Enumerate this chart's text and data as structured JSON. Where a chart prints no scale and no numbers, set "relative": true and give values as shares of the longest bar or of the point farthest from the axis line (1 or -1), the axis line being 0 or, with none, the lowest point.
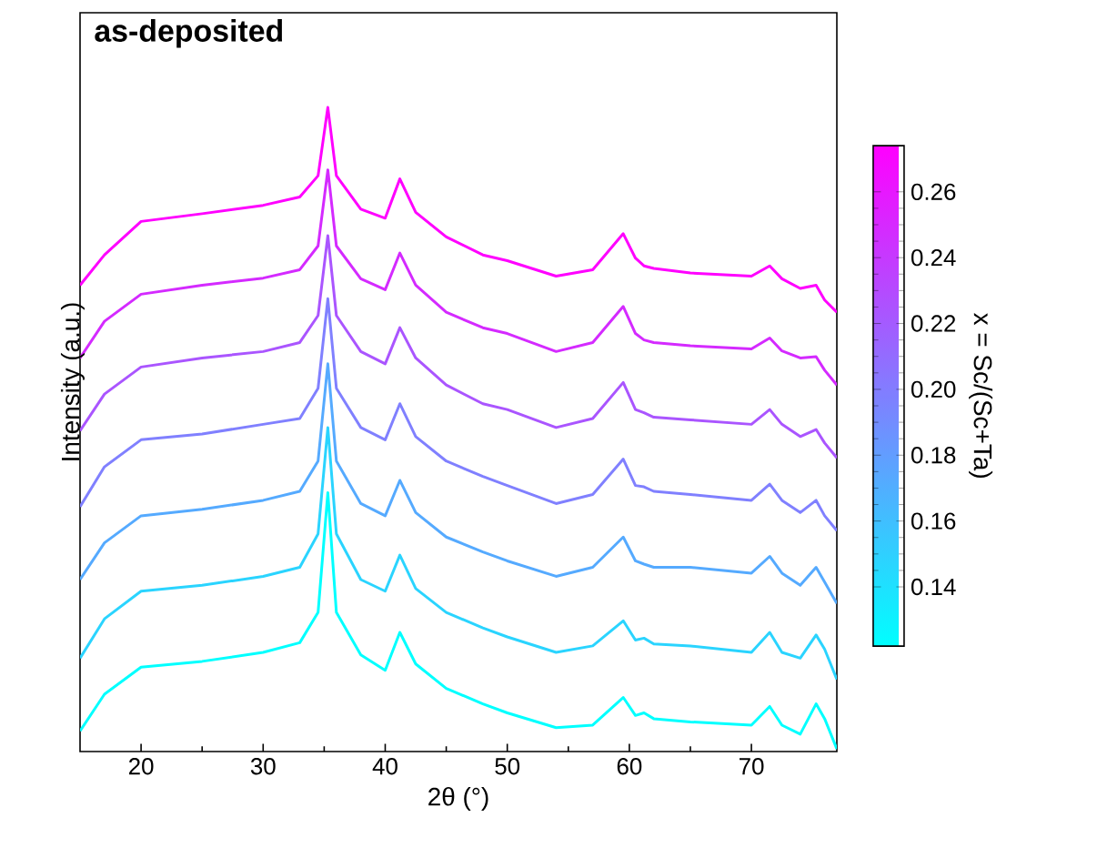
{
  "chart_data": {
    "type": "line",
    "title": "as-deposited",
    "xlabel": "2θ (°)",
    "ylabel": "Intensity (a.u.)",
    "clabel": "x = Sc/(Sc+Ta)",
    "relative": true,
    "tick_labels": "x",
    "xlim": [
      15,
      77
    ],
    "xticks": [
      20,
      30,
      40,
      50,
      60,
      70
    ],
    "clim": [
      0.122,
      0.274
    ],
    "cticks": [
      0.14,
      0.16,
      0.18,
      {
        "value": 0.2,
        "label": "0.20"
      },
      0.22,
      0.24,
      0.26
    ],
    "x": [
      15,
      17,
      20,
      25,
      30,
      33,
      34.5,
      35.3,
      36,
      38,
      40,
      41.2,
      42.5,
      45,
      48,
      50,
      54,
      57,
      59.5,
      60.5,
      61.2,
      62,
      65,
      70,
      71.5,
      72.5,
      74,
      75.3,
      76,
      77
    ],
    "series": [
      {
        "color": "#ff00ff",
        "values": [
          0.724,
          0.771,
          0.823,
          0.835,
          0.848,
          0.861,
          0.894,
          1.0,
          0.894,
          0.842,
          0.828,
          0.889,
          0.837,
          0.799,
          0.771,
          0.762,
          0.738,
          0.748,
          0.804,
          0.766,
          0.754,
          0.75,
          0.743,
          0.738,
          0.754,
          0.734,
          0.719,
          0.724,
          0.701,
          0.682
        ]
      },
      {
        "color": "#d42aff",
        "values": [
          0.611,
          0.668,
          0.71,
          0.724,
          0.735,
          0.748,
          0.785,
          0.903,
          0.785,
          0.734,
          0.717,
          0.774,
          0.724,
          0.682,
          0.658,
          0.649,
          0.621,
          0.635,
          0.691,
          0.649,
          0.639,
          0.635,
          0.63,
          0.625,
          0.642,
          0.622,
          0.611,
          0.613,
          0.592,
          0.569
        ]
      },
      {
        "color": "#aa55ff",
        "values": [
          0.498,
          0.555,
          0.597,
          0.611,
          0.621,
          0.635,
          0.677,
          0.801,
          0.677,
          0.621,
          0.602,
          0.658,
          0.611,
          0.569,
          0.54,
          0.531,
          0.503,
          0.517,
          0.573,
          0.531,
          0.526,
          0.519,
          0.515,
          0.508,
          0.531,
          0.508,
          0.489,
          0.5,
          0.479,
          0.456
        ]
      },
      {
        "color": "#8080ff",
        "values": [
          0.38,
          0.442,
          0.484,
          0.493,
          0.508,
          0.517,
          0.564,
          0.703,
          0.564,
          0.503,
          0.484,
          0.54,
          0.489,
          0.451,
          0.427,
          0.413,
          0.385,
          0.399,
          0.454,
          0.413,
          0.411,
          0.404,
          0.399,
          0.39,
          0.415,
          0.39,
          0.371,
          0.39,
          0.366,
          0.343
        ]
      },
      {
        "color": "#55aaff",
        "values": [
          0.267,
          0.324,
          0.366,
          0.376,
          0.39,
          0.404,
          0.451,
          0.602,
          0.451,
          0.385,
          0.366,
          0.421,
          0.371,
          0.333,
          0.31,
          0.296,
          0.272,
          0.286,
          0.333,
          0.296,
          0.291,
          0.286,
          0.286,
          0.277,
          0.303,
          0.277,
          0.258,
          0.286,
          0.263,
          0.23
        ]
      },
      {
        "color": "#2ad4ff",
        "values": [
          0.145,
          0.206,
          0.249,
          0.258,
          0.272,
          0.286,
          0.338,
          0.503,
          0.338,
          0.267,
          0.249,
          0.305,
          0.253,
          0.216,
          0.192,
          0.178,
          0.154,
          0.164,
          0.203,
          0.173,
          0.176,
          0.167,
          0.164,
          0.154,
          0.185,
          0.154,
          0.145,
          0.181,
          0.159,
          0.112
        ]
      },
      {
        "color": "#00ffff",
        "values": [
          0.032,
          0.089,
          0.131,
          0.14,
          0.154,
          0.169,
          0.216,
          0.402,
          0.216,
          0.15,
          0.126,
          0.185,
          0.136,
          0.098,
          0.074,
          0.06,
          0.037,
          0.041,
          0.084,
          0.056,
          0.06,
          0.051,
          0.046,
          0.041,
          0.07,
          0.041,
          0.027,
          0.074,
          0.051,
          0.004
        ]
      }
    ]
  }
}
